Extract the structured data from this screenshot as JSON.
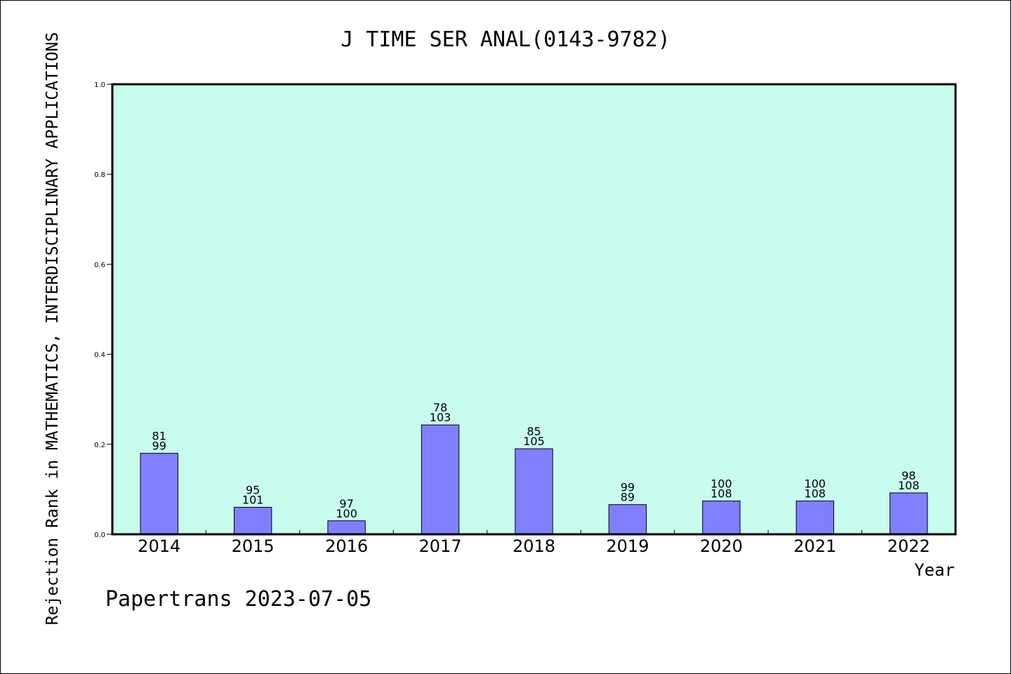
{
  "chart_data": {
    "type": "bar",
    "title": "J TIME SER ANAL(0143-9782)",
    "xlabel": "Year",
    "ylabel": "Rejection Rank in MATHEMATICS, INTERDISCIPLINARY APPLICATIONS",
    "ylim": [
      0,
      1.0
    ],
    "yticks": [
      "0.0",
      "0.2",
      "0.4",
      "0.6",
      "0.8",
      "1.0"
    ],
    "categories": [
      "2014",
      "2015",
      "2016",
      "2017",
      "2018",
      "2019",
      "2020",
      "2021",
      "2022"
    ],
    "values": [
      0.18,
      0.06,
      0.03,
      0.243,
      0.19,
      0.066,
      0.074,
      0.074,
      0.092
    ],
    "annotations_top": [
      "81",
      "95",
      "97",
      "78",
      "85",
      "99",
      "100",
      "100",
      "98"
    ],
    "annotations_bottom": [
      "99",
      "101",
      "100",
      "103",
      "105",
      "89",
      "108",
      "108",
      "108"
    ],
    "grid": false,
    "colors": {
      "plot_background": "#c8fcee",
      "bar_fill": "#8080ff",
      "bar_stroke": "#000000"
    }
  },
  "footer": {
    "watermark": "Papertrans 2023-07-05"
  }
}
